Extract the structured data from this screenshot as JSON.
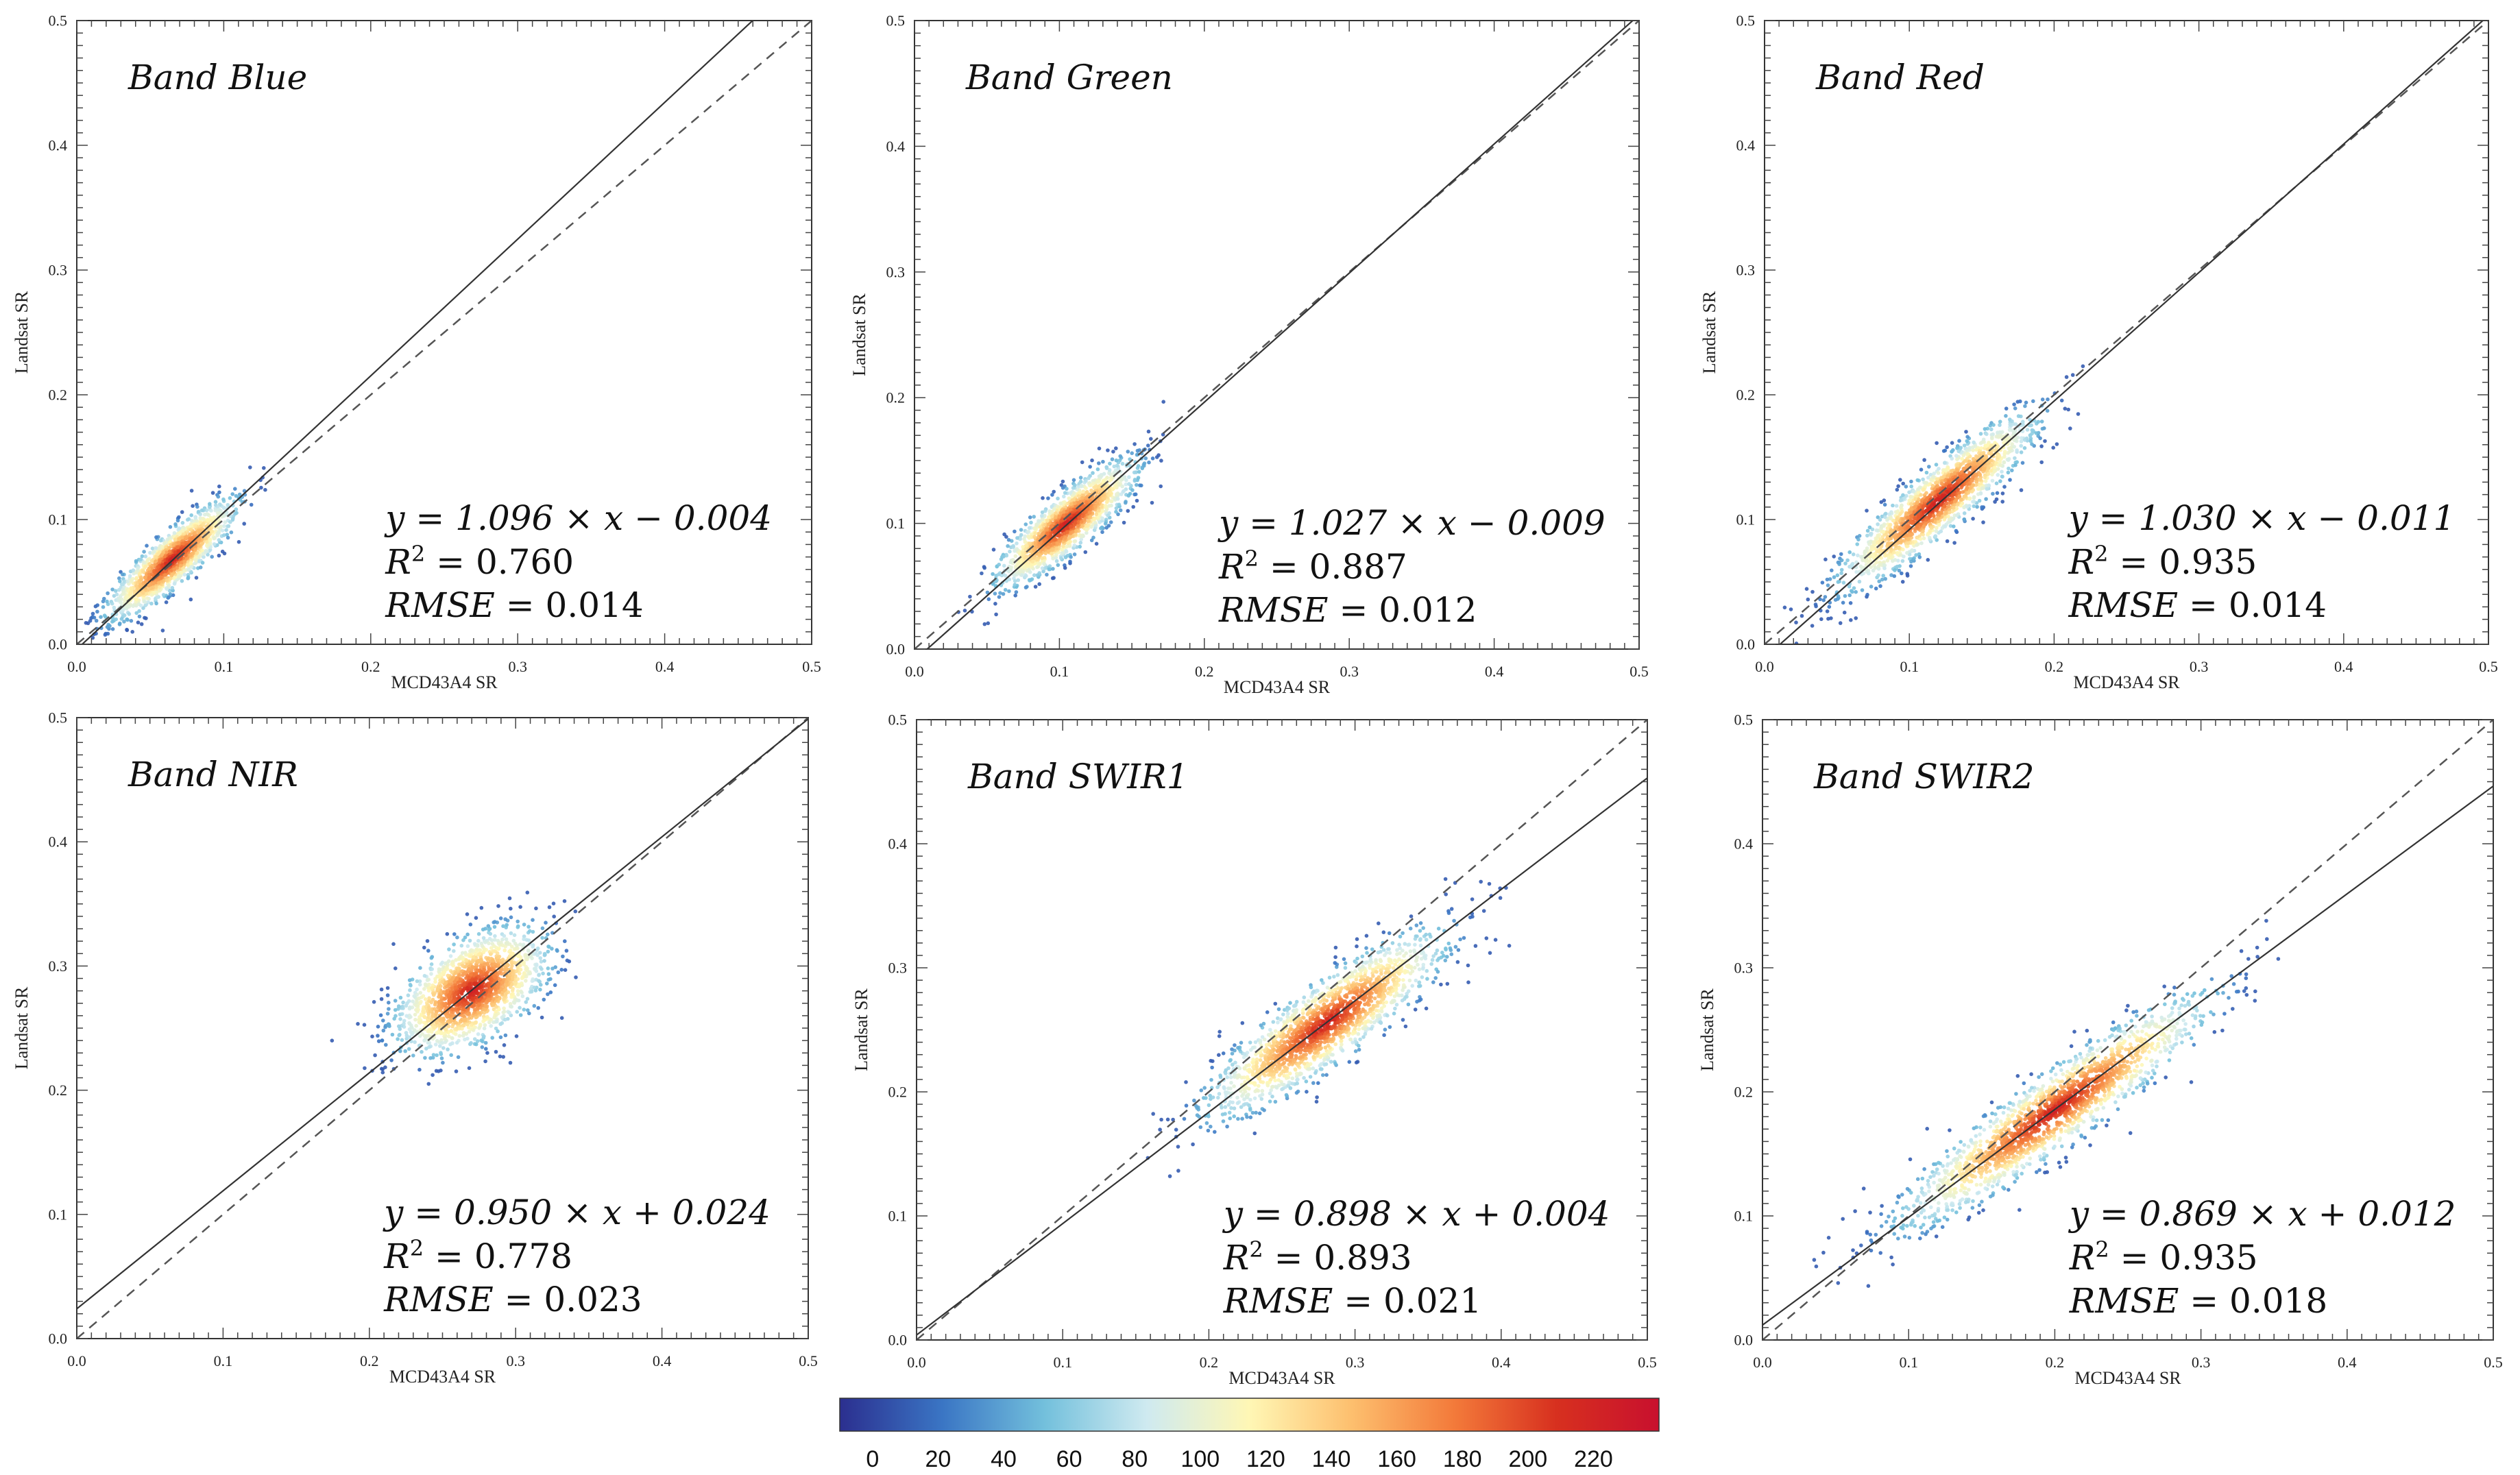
{
  "chart_data": [
    {
      "type": "scatter",
      "band": "Blue",
      "title": "Band Blue",
      "xlabel": "MCD43A4 SR",
      "ylabel": "Landsat SR",
      "xlim": [
        0,
        0.5
      ],
      "ylim": [
        0,
        0.5
      ],
      "xticks": [
        "0.0",
        "0.1",
        "0.2",
        "0.3",
        "0.4",
        "0.5"
      ],
      "yticks": [
        "0.0",
        "0.1",
        "0.2",
        "0.3",
        "0.4",
        "0.5"
      ],
      "fit": {
        "slope": 1.096,
        "intercept": -0.004
      },
      "equation": "y = 1.096 × x − 0.004",
      "r2": "0.760",
      "rmse": "0.014",
      "cloud": {
        "center": [
          0.065,
          0.068
        ],
        "spread_major": 0.03,
        "spread_minor": 0.008,
        "count": 1400
      }
    },
    {
      "type": "scatter",
      "band": "Green",
      "title": "Band Green",
      "xlabel": "MCD43A4 SR",
      "ylabel": "Landsat SR",
      "xlim": [
        0,
        0.5
      ],
      "ylim": [
        0,
        0.5
      ],
      "xticks": [
        "0.0",
        "0.1",
        "0.2",
        "0.3",
        "0.4",
        "0.5"
      ],
      "yticks": [
        "0.0",
        "0.1",
        "0.2",
        "0.3",
        "0.4",
        "0.5"
      ],
      "fit": {
        "slope": 1.027,
        "intercept": -0.009
      },
      "equation": "y = 1.027 × x − 0.009",
      "r2": "0.887",
      "rmse": "0.012",
      "cloud": {
        "center": [
          0.105,
          0.1
        ],
        "spread_major": 0.032,
        "spread_minor": 0.009,
        "count": 1500
      }
    },
    {
      "type": "scatter",
      "band": "Red",
      "title": "Band Red",
      "xlabel": "MCD43A4 SR",
      "ylabel": "Landsat SR",
      "xlim": [
        0,
        0.5
      ],
      "ylim": [
        0,
        0.5
      ],
      "xticks": [
        "0.0",
        "0.1",
        "0.2",
        "0.3",
        "0.4",
        "0.5"
      ],
      "yticks": [
        "0.0",
        "0.1",
        "0.2",
        "0.3",
        "0.4",
        "0.5"
      ],
      "fit": {
        "slope": 1.03,
        "intercept": -0.011
      },
      "equation": "y = 1.030 × x − 0.011",
      "r2": "0.935",
      "rmse": "0.014",
      "cloud": {
        "center": [
          0.12,
          0.115
        ],
        "spread_major": 0.045,
        "spread_minor": 0.01,
        "count": 1700
      }
    },
    {
      "type": "scatter",
      "band": "NIR",
      "title": "Band  NIR",
      "xlabel": "MCD43A4 SR",
      "ylabel": "Landsat SR",
      "xlim": [
        0,
        0.5
      ],
      "ylim": [
        0,
        0.5
      ],
      "xticks": [
        "0.0",
        "0.1",
        "0.2",
        "0.3",
        "0.4",
        "0.5"
      ],
      "yticks": [
        "0.0",
        "0.1",
        "0.2",
        "0.3",
        "0.4",
        "0.5"
      ],
      "fit": {
        "slope": 0.95,
        "intercept": 0.024
      },
      "equation": "y = 0.950 × x + 0.024",
      "r2": "0.778",
      "rmse": "0.023",
      "cloud": {
        "center": [
          0.27,
          0.28
        ],
        "spread_major": 0.03,
        "spread_minor": 0.017,
        "count": 1700
      }
    },
    {
      "type": "scatter",
      "band": "SWIR1",
      "title": "Band SWIR1",
      "xlabel": "MCD43A4 SR",
      "ylabel": "Landsat SR",
      "xlim": [
        0,
        0.5
      ],
      "ylim": [
        0,
        0.5
      ],
      "xticks": [
        "0.0",
        "0.1",
        "0.2",
        "0.3",
        "0.4",
        "0.5"
      ],
      "yticks": [
        "0.0",
        "0.1",
        "0.2",
        "0.3",
        "0.4",
        "0.5"
      ],
      "fit": {
        "slope": 0.898,
        "intercept": 0.004
      },
      "equation": "y = 0.898 × x + 0.004",
      "r2": "0.893",
      "rmse": "0.021",
      "cloud": {
        "center": [
          0.28,
          0.255
        ],
        "spread_major": 0.05,
        "spread_minor": 0.013,
        "count": 1800
      }
    },
    {
      "type": "scatter",
      "band": "SWIR2",
      "title": "Band SWIR2",
      "xlabel": "MCD43A4 SR",
      "ylabel": "Landsat SR",
      "xlim": [
        0,
        0.5
      ],
      "ylim": [
        0,
        0.5
      ],
      "xticks": [
        "0.0",
        "0.1",
        "0.2",
        "0.3",
        "0.4",
        "0.5"
      ],
      "yticks": [
        "0.0",
        "0.1",
        "0.2",
        "0.3",
        "0.4",
        "0.5"
      ],
      "fit": {
        "slope": 0.869,
        "intercept": 0.012
      },
      "equation": "y = 0.869 × x + 0.012",
      "r2": "0.935",
      "rmse": "0.018",
      "cloud": {
        "center": [
          0.2,
          0.185
        ],
        "spread_major": 0.065,
        "spread_minor": 0.012,
        "count": 1900
      }
    }
  ],
  "colorbar": {
    "ticks": [
      "0",
      "20",
      "40",
      "60",
      "80",
      "100",
      "120",
      "140",
      "160",
      "180",
      "200",
      "220"
    ],
    "range": [
      -10,
      240
    ],
    "colors": [
      "#2b2f8f",
      "#3a75c4",
      "#73c0dc",
      "#cfeaf0",
      "#fff7b5",
      "#fdbf6e",
      "#f37a3a",
      "#d7301f",
      "#c8102e"
    ]
  },
  "labels": {
    "r2_prefix": "R",
    "r2_exponent": "2",
    "equals": " = ",
    "rmse_name": "RMSE"
  }
}
